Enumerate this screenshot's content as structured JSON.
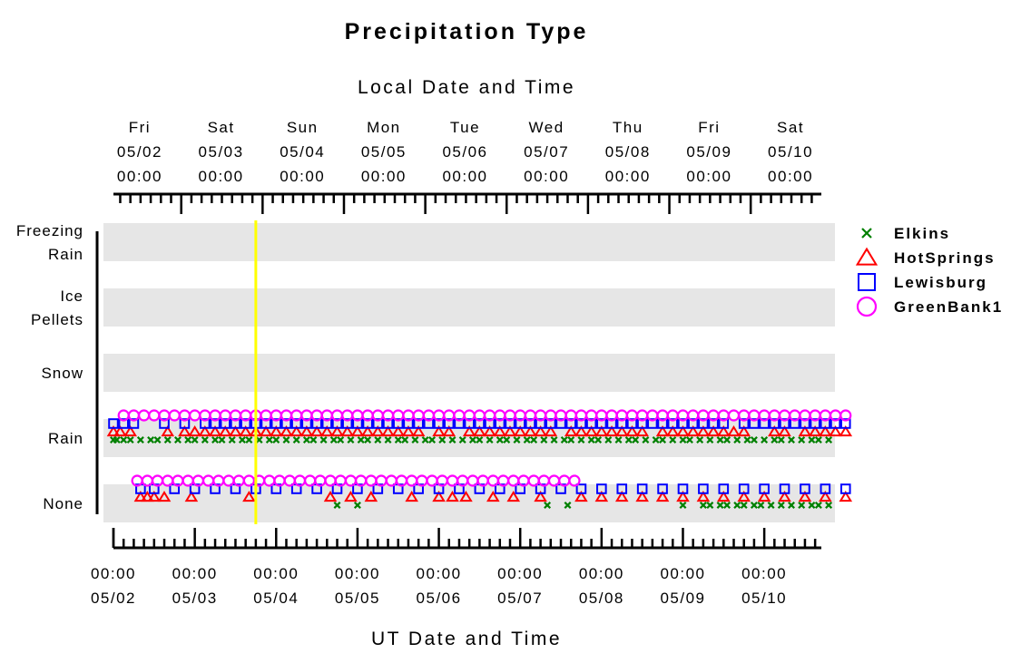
{
  "chart_data": {
    "type": "scatter",
    "title": "Precipitation Type",
    "top_axis_label": "Local Date and Time",
    "bottom_axis_label": "UT Date and Time",
    "top_ticks": [
      {
        "day": "Fri",
        "date": "05/02",
        "time": "00:00"
      },
      {
        "day": "Sat",
        "date": "05/03",
        "time": "00:00"
      },
      {
        "day": "Sun",
        "date": "05/04",
        "time": "00:00"
      },
      {
        "day": "Mon",
        "date": "05/05",
        "time": "00:00"
      },
      {
        "day": "Tue",
        "date": "05/06",
        "time": "00:00"
      },
      {
        "day": "Wed",
        "date": "05/07",
        "time": "00:00"
      },
      {
        "day": "Thu",
        "date": "05/08",
        "time": "00:00"
      },
      {
        "day": "Fri",
        "date": "05/09",
        "time": "00:00"
      },
      {
        "day": "Sat",
        "date": "05/10",
        "time": "00:00"
      }
    ],
    "bottom_ticks": [
      {
        "time": "00:00",
        "date": "05/02"
      },
      {
        "time": "00:00",
        "date": "05/03"
      },
      {
        "time": "00:00",
        "date": "05/04"
      },
      {
        "time": "00:00",
        "date": "05/05"
      },
      {
        "time": "00:00",
        "date": "05/06"
      },
      {
        "time": "00:00",
        "date": "05/07"
      },
      {
        "time": "00:00",
        "date": "05/08"
      },
      {
        "time": "00:00",
        "date": "05/09"
      },
      {
        "time": "00:00",
        "date": "05/10"
      }
    ],
    "categories": [
      {
        "key": "freezing_rain",
        "lines": [
          "Freezing",
          "Rain"
        ]
      },
      {
        "key": "ice_pellets",
        "lines": [
          "Ice",
          "Pellets"
        ]
      },
      {
        "key": "snow",
        "lines": [
          "Snow"
        ]
      },
      {
        "key": "rain",
        "lines": [
          "Rain"
        ]
      },
      {
        "key": "none",
        "lines": [
          "None"
        ]
      }
    ],
    "x_range_hours_ut": [
      0,
      219
    ],
    "local_offset_hours": -4,
    "current_time_ut_hours": 42,
    "current_time_color": "#ffff00",
    "legend_position": "right",
    "series": [
      {
        "name": "Elkins",
        "marker": "x",
        "color": "#008000",
        "rain": [
          0,
          1,
          3,
          5,
          8,
          11,
          13,
          16,
          19,
          22,
          24,
          27,
          30,
          32,
          35,
          38,
          40,
          43,
          46,
          48,
          51,
          54,
          57,
          59,
          62,
          65,
          67,
          70,
          73,
          75,
          78,
          81,
          84,
          86,
          89,
          92,
          94,
          97,
          100,
          103,
          106,
          108,
          111,
          114,
          116,
          119,
          122,
          124,
          127,
          130,
          133,
          135,
          138,
          141,
          143,
          146,
          149,
          152,
          154,
          157,
          160,
          162,
          165,
          168,
          170,
          173,
          176,
          179,
          181,
          184,
          187,
          189,
          192,
          195,
          197,
          200,
          203,
          206,
          208,
          211
        ],
        "none": [
          66,
          72,
          128,
          134,
          168,
          174,
          176,
          179,
          181,
          184,
          186,
          189,
          191,
          194,
          197,
          200,
          203,
          206,
          208,
          211
        ]
      },
      {
        "name": "HotSprings",
        "marker": "triangle",
        "color": "#ff0000",
        "rain": [
          0,
          2,
          5,
          16,
          21,
          24,
          27,
          30,
          33,
          36,
          39,
          42,
          45,
          48,
          51,
          54,
          57,
          60,
          63,
          66,
          69,
          72,
          75,
          78,
          81,
          84,
          87,
          90,
          96,
          99,
          105,
          108,
          111,
          114,
          117,
          120,
          123,
          126,
          129,
          135,
          138,
          141,
          144,
          147,
          150,
          153,
          156,
          162,
          165,
          168,
          171,
          174,
          177,
          180,
          183,
          186,
          195,
          198,
          204,
          207,
          210,
          213,
          216
        ],
        "none": [
          8,
          10,
          12,
          15,
          23,
          40,
          64,
          70,
          76,
          88,
          96,
          100,
          104,
          112,
          118,
          126,
          138,
          144,
          150,
          156,
          162,
          168,
          174,
          180,
          186,
          192,
          198,
          204,
          210,
          216
        ]
      },
      {
        "name": "Lewisburg",
        "marker": "square",
        "color": "#0000ff",
        "rain": [
          0,
          3,
          6,
          15,
          21,
          27,
          30,
          33,
          36,
          39,
          42,
          45,
          48,
          51,
          54,
          57,
          60,
          63,
          66,
          69,
          72,
          75,
          78,
          81,
          84,
          87,
          90,
          93,
          96,
          99,
          102,
          105,
          108,
          111,
          114,
          117,
          120,
          123,
          126,
          129,
          132,
          135,
          138,
          141,
          144,
          147,
          150,
          153,
          156,
          159,
          162,
          165,
          168,
          171,
          174,
          177,
          180,
          186,
          189,
          192,
          195,
          198,
          201,
          204,
          207,
          210,
          213,
          216
        ],
        "none": [
          8,
          12,
          18,
          24,
          30,
          36,
          42,
          48,
          54,
          60,
          66,
          72,
          78,
          84,
          90,
          96,
          102,
          108,
          114,
          120,
          126,
          132,
          138,
          144,
          150,
          156,
          162,
          168,
          174,
          180,
          186,
          192,
          198,
          204,
          210,
          216
        ]
      },
      {
        "name": "GreenBank1",
        "marker": "circle",
        "color": "#ff00ff",
        "rain": [
          3,
          6,
          9,
          12,
          15,
          18,
          21,
          24,
          27,
          30,
          33,
          36,
          39,
          42,
          45,
          48,
          51,
          54,
          57,
          60,
          63,
          66,
          69,
          72,
          75,
          78,
          81,
          84,
          87,
          90,
          93,
          96,
          99,
          102,
          105,
          108,
          111,
          114,
          117,
          120,
          123,
          126,
          129,
          132,
          135,
          138,
          141,
          144,
          147,
          150,
          153,
          156,
          159,
          162,
          165,
          168,
          171,
          174,
          177,
          180,
          183,
          186,
          189,
          192,
          195,
          198,
          201,
          204,
          207,
          210,
          213,
          216
        ],
        "none": [
          7,
          10,
          13,
          16,
          19,
          22,
          25,
          28,
          31,
          34,
          37,
          40,
          43,
          46,
          49,
          52,
          55,
          58,
          61,
          64,
          67,
          70,
          73,
          76,
          79,
          82,
          85,
          88,
          91,
          94,
          97,
          100,
          103,
          106,
          109,
          112,
          115,
          118,
          121,
          124,
          127,
          130,
          133,
          136
        ]
      }
    ]
  }
}
